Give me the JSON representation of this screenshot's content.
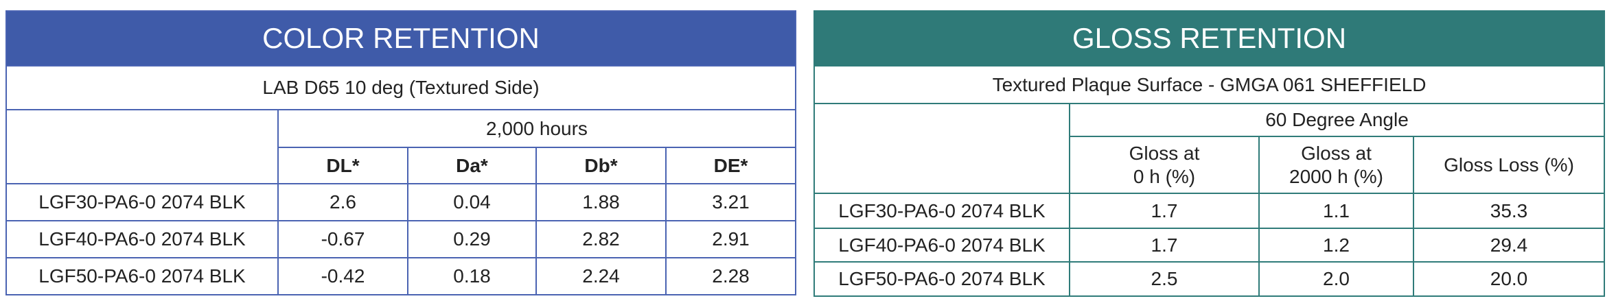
{
  "color_retention": {
    "title": "COLOR RETENTION",
    "subtitle": "LAB D65 10 deg (Textured Side)",
    "group": "2,000 hours",
    "columns": [
      "DL*",
      "Da*",
      "Db*",
      "DE*"
    ],
    "rows": [
      [
        "LGF30-PA6-0 2074 BLK",
        "2.6",
        "0.04",
        "1.88",
        "3.21"
      ],
      [
        "LGF40-PA6-0 2074 BLK",
        "-0.67",
        "0.29",
        "2.82",
        "2.91"
      ],
      [
        "LGF50-PA6-0 2074 BLK",
        "-0.42",
        "0.18",
        "2.24",
        "2.28"
      ]
    ]
  },
  "gloss_retention": {
    "title": "GLOSS RETENTION",
    "subtitle": "Textured Plaque Surface - GMGA 061 SHEFFIELD",
    "group": "60 Degree Angle",
    "columns": [
      "Gloss at\n0 h (%)",
      "Gloss at\n2000 h (%)",
      "Gloss Loss (%)"
    ],
    "rows": [
      [
        "LGF30-PA6-0 2074 BLK",
        "1.7",
        "1.1",
        "35.3"
      ],
      [
        "LGF40-PA6-0 2074 BLK",
        "1.7",
        "1.2",
        "29.4"
      ],
      [
        "LGF50-PA6-0 2074 BLK",
        "2.5",
        "2.0",
        "20.0"
      ]
    ]
  }
}
